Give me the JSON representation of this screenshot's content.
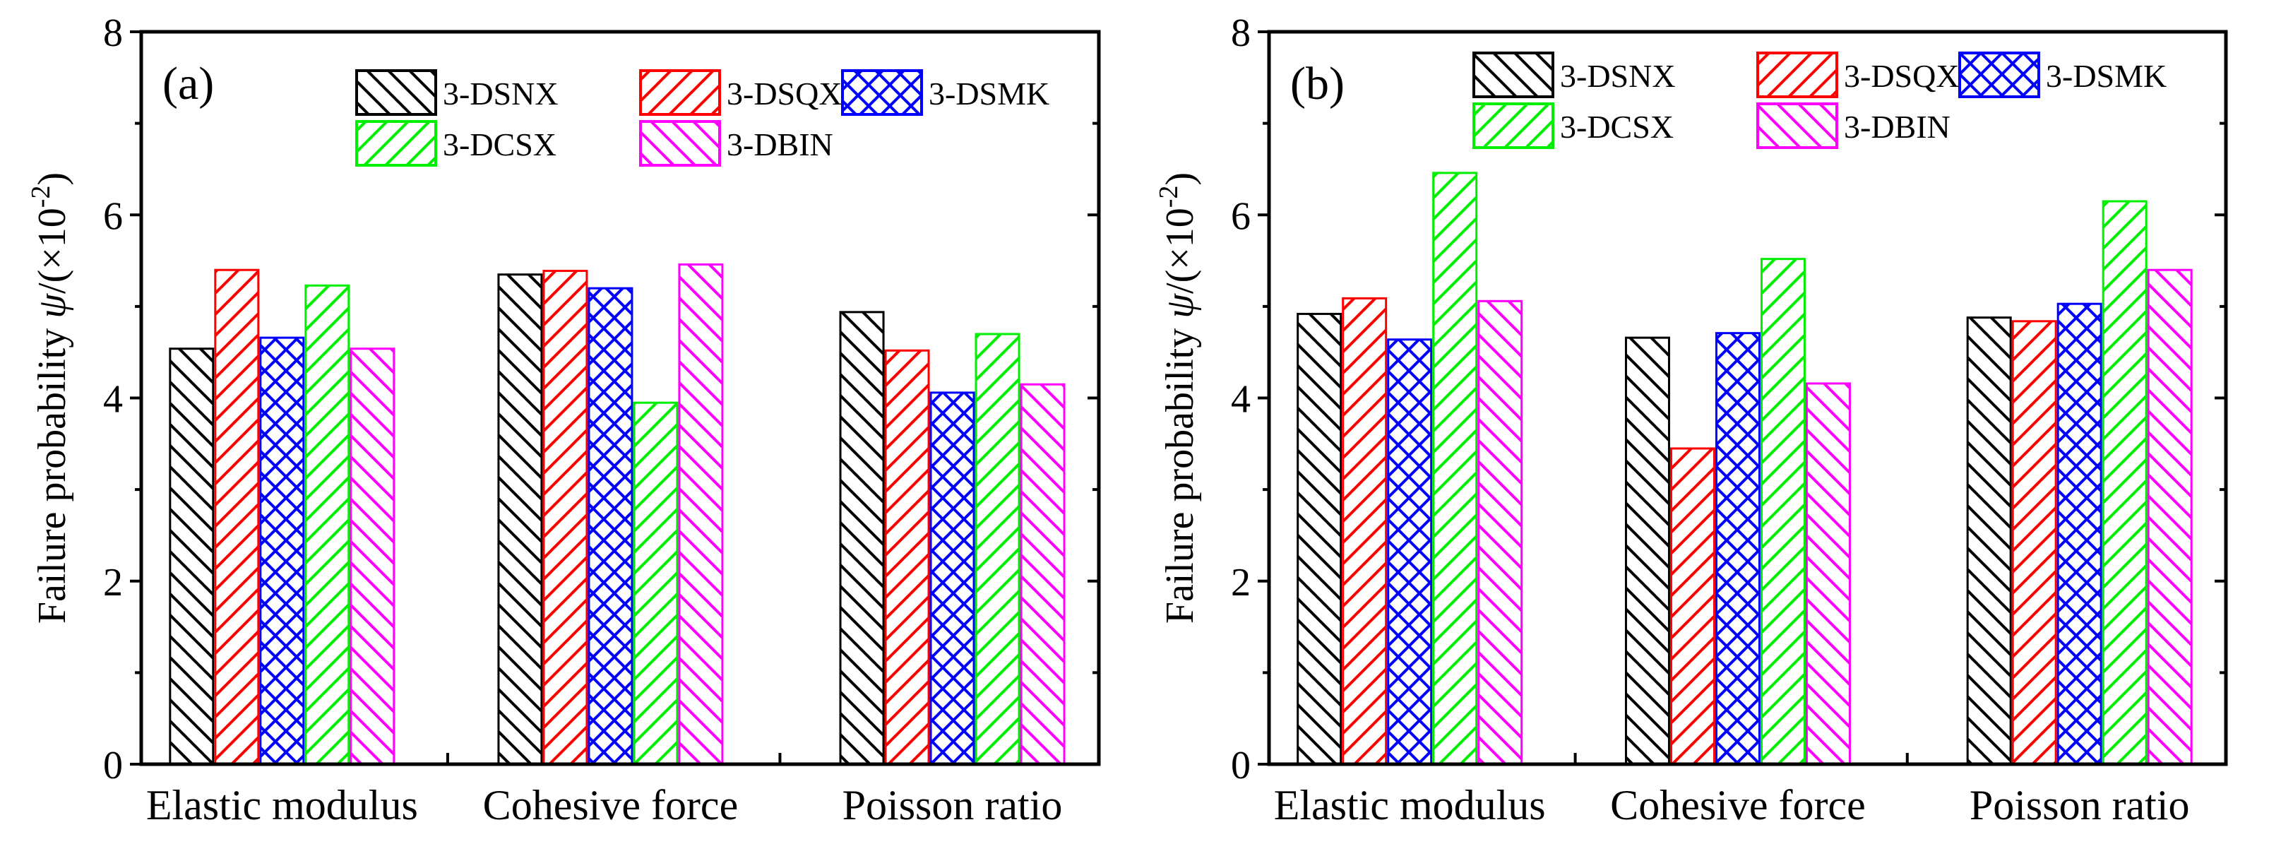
{
  "chart_data": [
    {
      "type": "bar",
      "panel_label": "(a)",
      "categories": [
        "Elastic modulus",
        "Cohesive force",
        "Poisson ratio"
      ],
      "series": [
        {
          "name": "3-DSNX",
          "color": "#000000",
          "pattern": "backslash",
          "values": [
            4.55,
            5.36,
            4.95
          ]
        },
        {
          "name": "3-DSQX",
          "color": "#ff0000",
          "pattern": "slash",
          "values": [
            5.41,
            5.4,
            4.53
          ]
        },
        {
          "name": "3-DSMK",
          "color": "#0000ff",
          "pattern": "crosshatch",
          "values": [
            4.67,
            5.21,
            4.07
          ]
        },
        {
          "name": "3-DCSX",
          "color": "#00ee00",
          "pattern": "slash",
          "values": [
            5.24,
            3.96,
            4.71
          ]
        },
        {
          "name": "3-DBIN",
          "color": "#ff00ff",
          "pattern": "backslash",
          "values": [
            4.55,
            5.47,
            4.16
          ]
        }
      ],
      "ylabel": "Failure probability ψ/(×10⁻²)",
      "ylabel_main": "Failure probability ",
      "ylabel_symbol": "ψ",
      "ylabel_unit": "/(×10",
      "ylabel_exp": "-2",
      "ylabel_close": ")",
      "yticks": [
        "0",
        "2",
        "4",
        "6",
        "8"
      ],
      "ylim": [
        0,
        8
      ],
      "legend": "top-right"
    },
    {
      "type": "bar",
      "panel_label": "(b)",
      "categories": [
        "Elastic modulus",
        "Cohesive force",
        "Poisson ratio"
      ],
      "series": [
        {
          "name": "3-DSNX",
          "color": "#000000",
          "pattern": "backslash",
          "values": [
            4.93,
            4.67,
            4.89
          ]
        },
        {
          "name": "3-DSQX",
          "color": "#ff0000",
          "pattern": "slash",
          "values": [
            5.1,
            3.46,
            4.85
          ]
        },
        {
          "name": "3-DSMK",
          "color": "#0000ff",
          "pattern": "crosshatch",
          "values": [
            4.65,
            4.72,
            5.04
          ]
        },
        {
          "name": "3-DCSX",
          "color": "#00ee00",
          "pattern": "slash",
          "values": [
            6.47,
            5.53,
            6.16
          ]
        },
        {
          "name": "3-DBIN",
          "color": "#ff00ff",
          "pattern": "backslash",
          "values": [
            5.07,
            4.17,
            5.41
          ]
        }
      ],
      "ylabel": "Failure probability ψ/(×10⁻²)",
      "ylabel_main": "Failure probability ",
      "ylabel_symbol": "ψ",
      "ylabel_unit": "/(×10",
      "ylabel_exp": "-2",
      "ylabel_close": ")",
      "yticks": [
        "0",
        "2",
        "4",
        "6",
        "8"
      ],
      "ylim": [
        0,
        8
      ],
      "legend": "top-right"
    }
  ]
}
